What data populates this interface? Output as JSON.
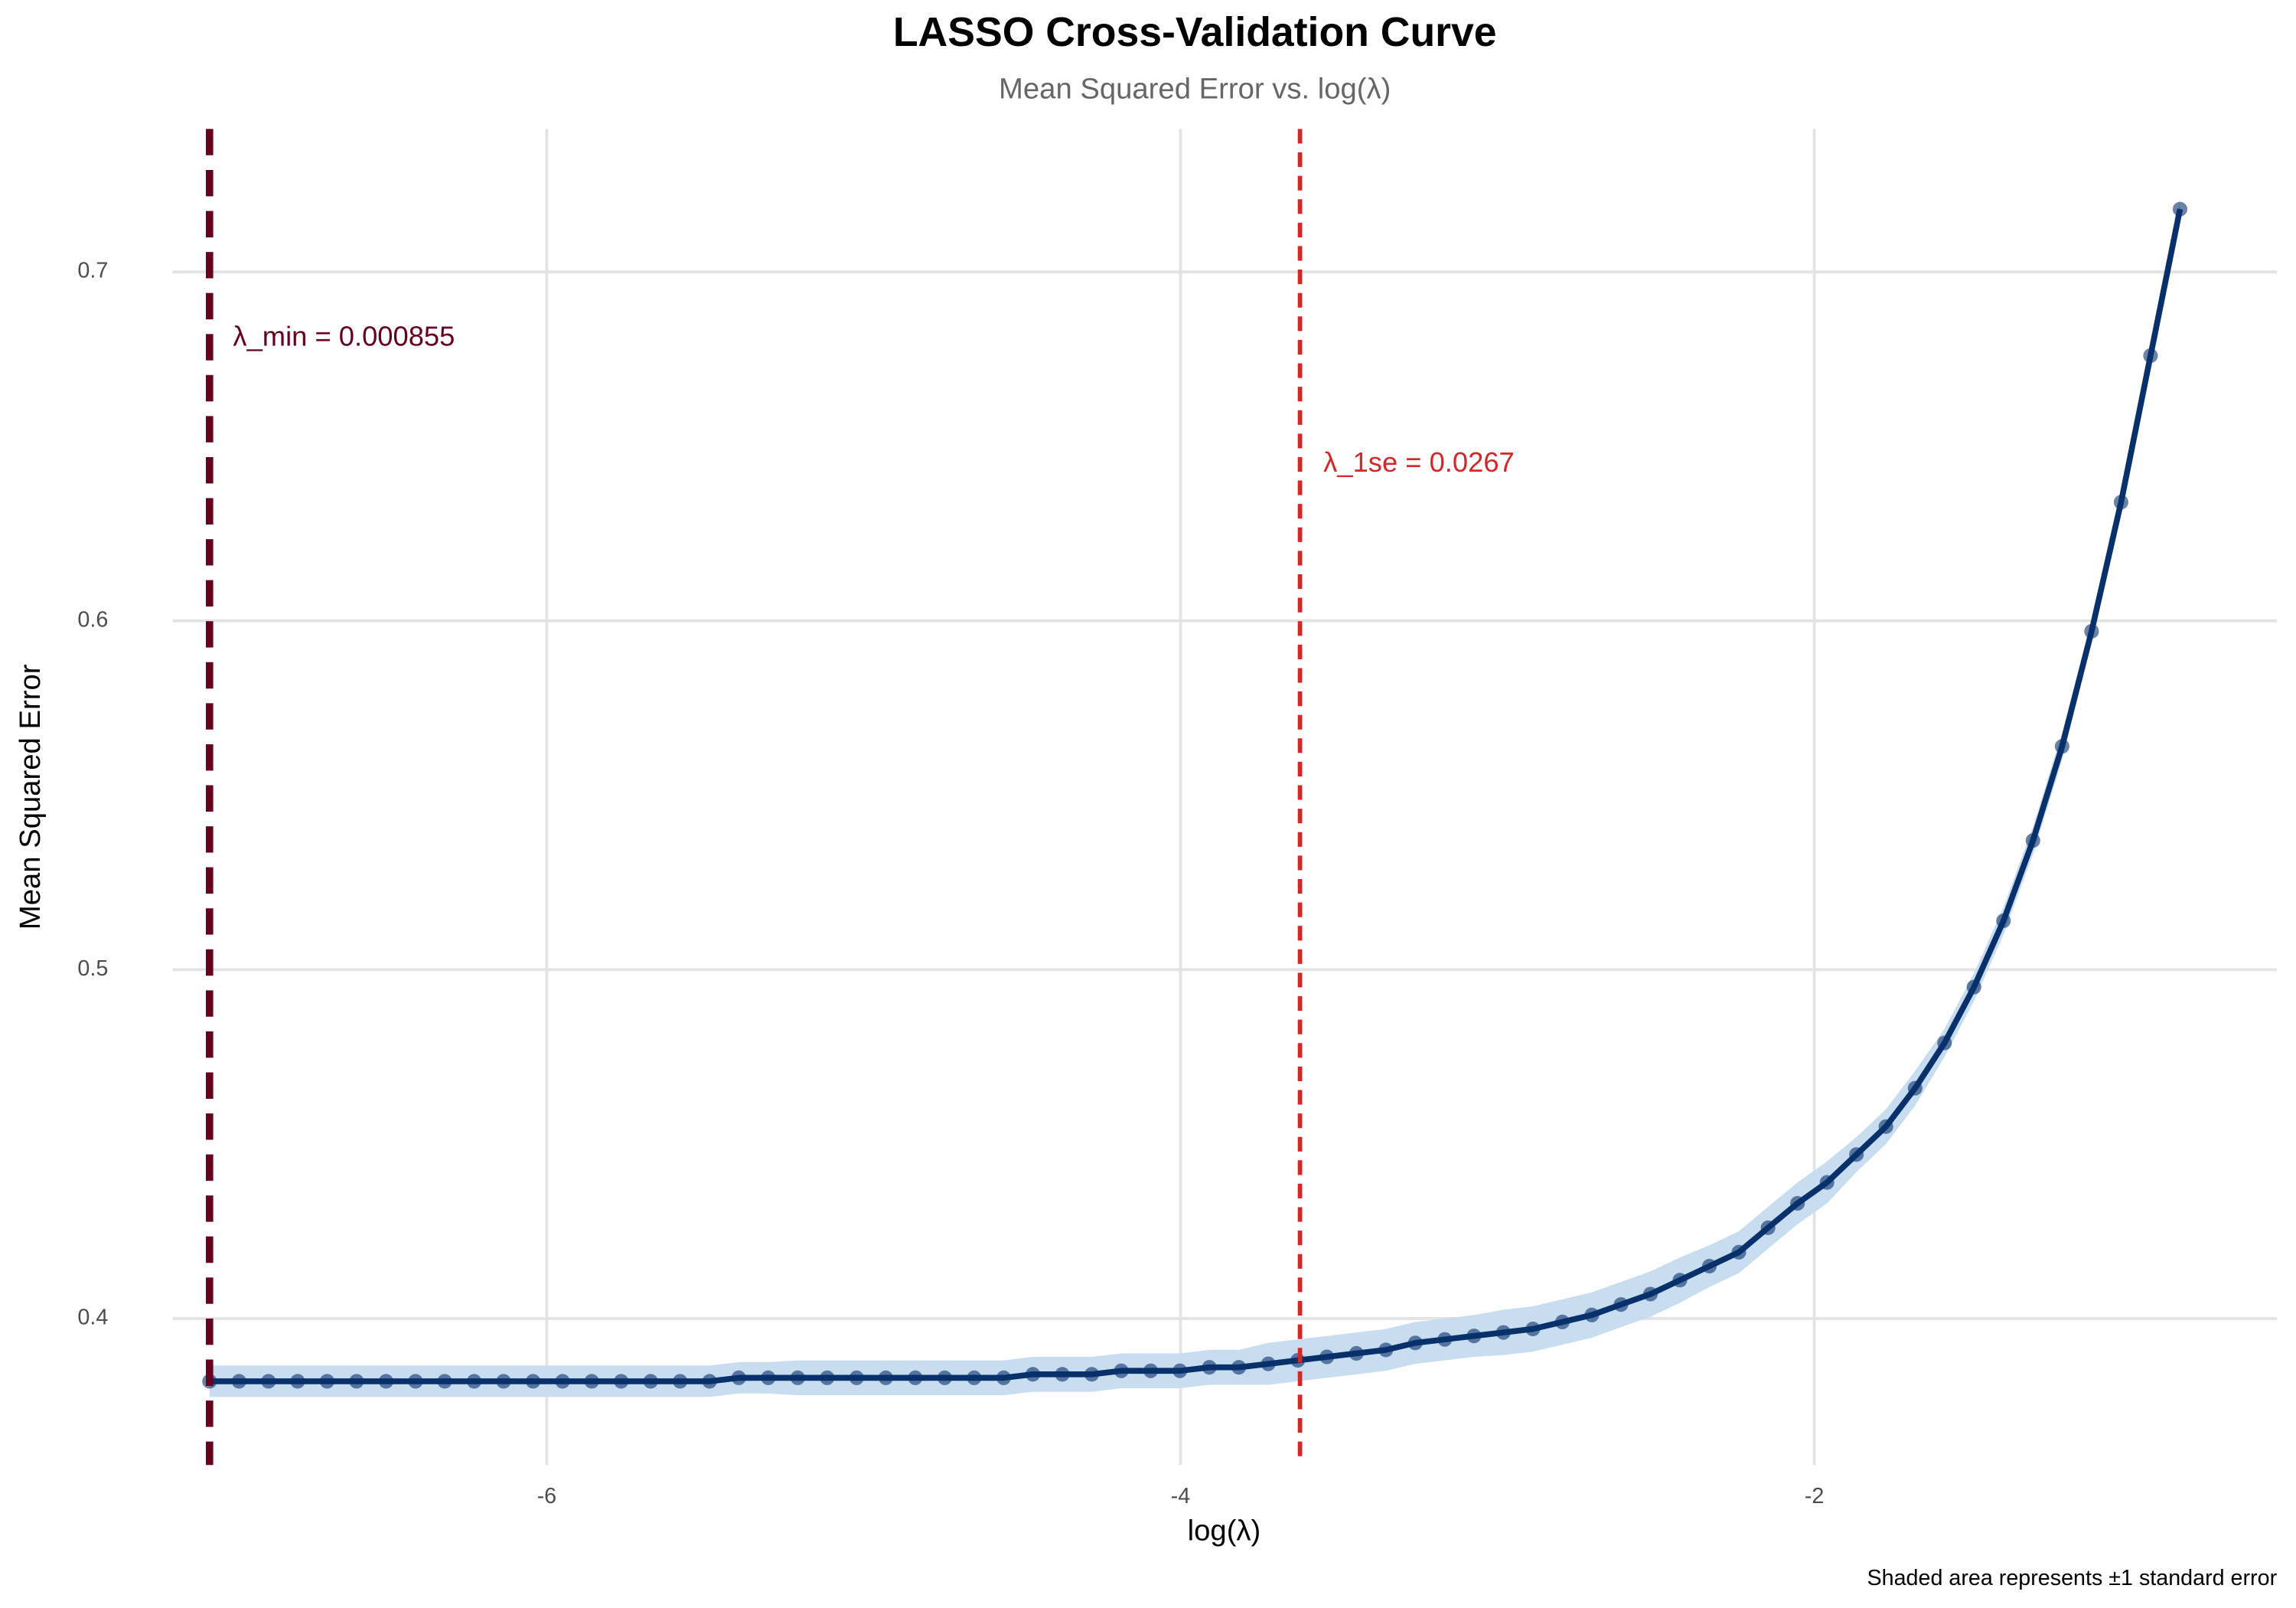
{
  "chart_data": {
    "type": "line",
    "title": "LASSO Cross-Validation Curve",
    "subtitle": "Mean Squared Error vs. log(λ)",
    "x_label": "log(λ)",
    "y_label": "Mean Squared Error",
    "caption": "Shaded area represents ±1 standard error",
    "x": [
      -7.064,
      -6.971,
      -6.878,
      -6.786,
      -6.693,
      -6.6,
      -6.507,
      -6.414,
      -6.322,
      -6.229,
      -6.136,
      -6.043,
      -5.95,
      -5.858,
      -5.765,
      -5.672,
      -5.579,
      -5.486,
      -5.394,
      -5.301,
      -5.208,
      -5.115,
      -5.022,
      -4.93,
      -4.837,
      -4.744,
      -4.651,
      -4.558,
      -4.466,
      -4.373,
      -4.28,
      -4.187,
      -4.094,
      -4.002,
      -3.909,
      -3.816,
      -3.723,
      -3.63,
      -3.538,
      -3.445,
      -3.352,
      -3.259,
      -3.166,
      -3.074,
      -2.981,
      -2.888,
      -2.795,
      -2.702,
      -2.61,
      -2.517,
      -2.424,
      -2.331,
      -2.238,
      -2.146,
      -2.053,
      -1.96,
      -1.867,
      -1.774,
      -1.682,
      -1.589,
      -1.496,
      -1.403,
      -1.31,
      -1.218,
      -1.125,
      -1.032,
      -0.939,
      -0.846
    ],
    "series": [
      {
        "color": "#08306b",
        "band_color": "#c6dbef",
        "values": [
          0.382,
          0.382,
          0.382,
          0.382,
          0.382,
          0.382,
          0.382,
          0.382,
          0.382,
          0.382,
          0.382,
          0.382,
          0.382,
          0.382,
          0.382,
          0.382,
          0.382,
          0.382,
          0.383,
          0.383,
          0.383,
          0.383,
          0.383,
          0.383,
          0.383,
          0.383,
          0.383,
          0.383,
          0.384,
          0.384,
          0.384,
          0.385,
          0.385,
          0.385,
          0.386,
          0.386,
          0.387,
          0.388,
          0.389,
          0.39,
          0.391,
          0.393,
          0.394,
          0.395,
          0.396,
          0.397,
          0.399,
          0.401,
          0.404,
          0.407,
          0.411,
          0.415,
          0.419,
          0.426,
          0.433,
          0.439,
          0.447,
          0.455,
          0.466,
          0.479,
          0.495,
          0.514,
          0.537,
          0.564,
          0.597,
          0.634,
          0.676,
          0.718
        ],
        "errors": [
          0.0045,
          0.0045,
          0.0045,
          0.0045,
          0.0045,
          0.0045,
          0.0045,
          0.0045,
          0.0045,
          0.0045,
          0.0045,
          0.0045,
          0.0045,
          0.0045,
          0.0045,
          0.0045,
          0.0045,
          0.0045,
          0.0045,
          0.0045,
          0.005,
          0.005,
          0.005,
          0.005,
          0.005,
          0.005,
          0.005,
          0.005,
          0.005,
          0.005,
          0.005,
          0.005,
          0.005,
          0.005,
          0.005,
          0.005,
          0.006,
          0.006,
          0.006,
          0.006,
          0.006,
          0.006,
          0.006,
          0.006,
          0.0065,
          0.0065,
          0.0065,
          0.0065,
          0.0065,
          0.0065,
          0.0065,
          0.006,
          0.006,
          0.006,
          0.006,
          0.006,
          0.005,
          0.005,
          0.005,
          0.004,
          0.004,
          0.004,
          0.004,
          0.004,
          0.003,
          0.003,
          0.003,
          0.003
        ]
      }
    ],
    "vlines": [
      {
        "x": -7.064,
        "label": "λ_min = 0.000855",
        "color": "#67001f"
      },
      {
        "x": -3.623,
        "label": "λ_1se = 0.0267",
        "color": "#d62728"
      }
    ],
    "xlim": [
      -7.18,
      -0.54
    ],
    "ylim": [
      0.358,
      0.741
    ],
    "xticks": [
      -6,
      -4,
      -2
    ],
    "yticks": [
      0.4,
      0.5,
      0.6,
      0.7
    ],
    "grid": true
  }
}
